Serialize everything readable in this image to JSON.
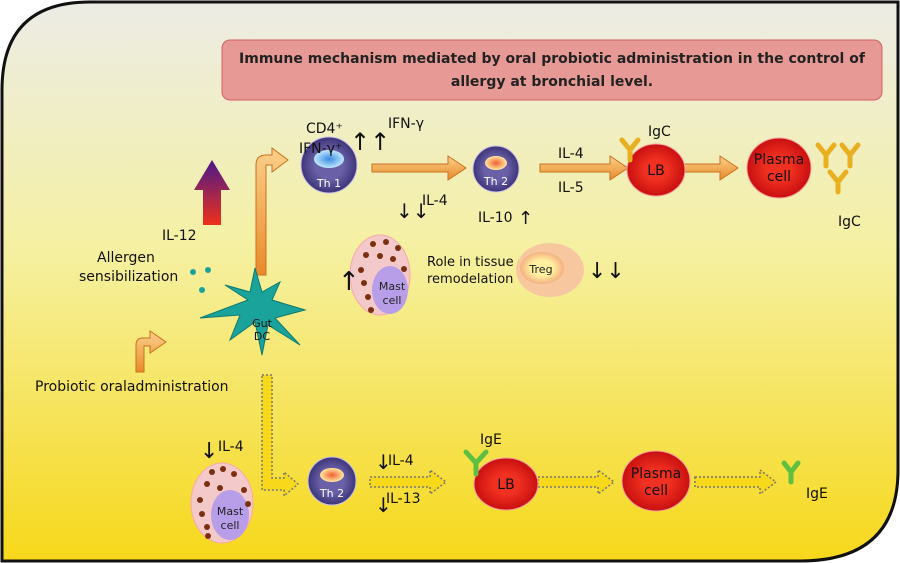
{
  "title": {
    "line1": "Immune mechanism mediated by oral probiotic administration in the control of",
    "line2": "allergy at bronchial level."
  },
  "colors": {
    "panel_top": "#eeeee4",
    "panel_bottom": "#f7d81a",
    "title_box": "#e79a95",
    "arrow": "#f0a040",
    "cell_purple": "#5a4f9a",
    "lb_red": "#e8231d",
    "mast_pink": "#f3c9c9",
    "dc_teal": "#1aa39a"
  },
  "labels": {
    "cd4": "CD4⁺",
    "ifng_plus": "IFN-γ⁺",
    "ifng": "IFN-γ",
    "il12": "IL-12",
    "allergen1": "Allergen",
    "allergen2": "sensibilization",
    "probiotic": "Probiotic oraladministration",
    "il4_down_th1": "IL-4",
    "il10": "IL-10",
    "il4_top": "IL-4",
    "il5": "IL-5",
    "igc_top": "IgC",
    "igc_right": "IgC",
    "role1": "Role in tissue",
    "role2": "remodelation",
    "il4_mast_bottom": "IL-4",
    "il4_bottom": "IL-4",
    "il13": "IL-13",
    "ige_top": "IgE",
    "ige_right": "IgE",
    "up_arrow": "↑",
    "down_arrow": "↓",
    "double_up": "↑↑",
    "double_down": "↓↓"
  },
  "cells": {
    "th1": "Th 1",
    "th2_top": "Th 2",
    "th2_bottom": "Th 2",
    "lb_top": "LB",
    "lb_bottom": "LB",
    "plasma_top_1": "Plasma",
    "plasma_top_2": "cell",
    "plasma_bottom_1": "Plasma",
    "plasma_bottom_2": "cell",
    "mast_top_1": "Mast",
    "mast_top_2": "cell",
    "mast_bottom_1": "Mast",
    "mast_bottom_2": "cell",
    "treg": "Treg",
    "dc_1": "Gut",
    "dc_2": "DC"
  }
}
